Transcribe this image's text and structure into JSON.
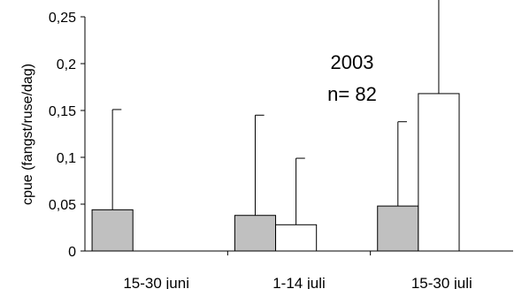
{
  "chart_data": {
    "type": "bar",
    "categories": [
      "15-30 juni",
      "1-14 juli",
      "15-30 juli"
    ],
    "series": [
      {
        "values": [
          0.044,
          0.038,
          0.048
        ],
        "errors": [
          0.107,
          0.107,
          0.09
        ],
        "color": "#c0c0c0"
      },
      {
        "values": [
          0.0,
          0.028,
          0.168
        ],
        "errors": [
          0.0,
          0.071,
          0.252
        ],
        "color": "#ffffff"
      }
    ],
    "ylabel": "cpue (fangst/ruse/dag)",
    "ylim": [
      0,
      0.25
    ],
    "yticks": [
      "0",
      "0,05",
      "0,1",
      "0,15",
      "0,2",
      "0,25"
    ],
    "annotations": [
      "2003",
      "n= 82"
    ],
    "grid": false,
    "legend": "none"
  }
}
